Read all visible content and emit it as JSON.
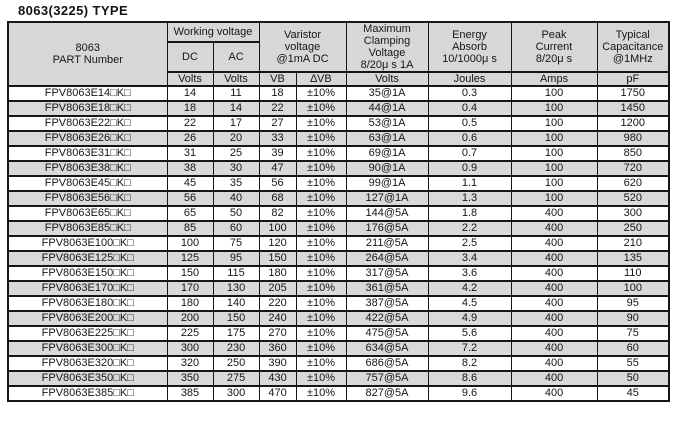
{
  "title": "8063(3225) TYPE",
  "colors": {
    "header_bg": "#d7d7d7",
    "stripe_bg": "#d9d9d9",
    "border": "#161616",
    "text": "#161616"
  },
  "table": {
    "header": {
      "part_number": "8063\nPART Number",
      "working_voltage": "Working voltage",
      "dc": "DC",
      "ac": "AC",
      "varistor_voltage": "Varistor\nvoltage\n@1mA DC",
      "max_clamping_voltage": "Maximum\nClamping\nVoltage\n8/20μ s 1A",
      "energy_absorb": "Energy\nAbsorb\n10/1000μ s",
      "peak_current": "Peak\nCurrent\n8/20μ s",
      "typical_capacitance": "Typical\nCapacitance\n@1MHz",
      "units": [
        "Volts",
        "Volts",
        "VB",
        "∆VB",
        "Volts",
        "Joules",
        "Amps",
        "pF"
      ]
    },
    "columns": [
      "part-number",
      "dc-working-volts",
      "ac-working-volts",
      "varistor-vb",
      "varistor-delta-vb",
      "max-clamping-voltage",
      "energy-joules",
      "peak-current-amps",
      "capacitance-pf"
    ],
    "rows": [
      [
        "FPV8063E14□K□",
        "14",
        "11",
        "18",
        "±10%",
        "35@1A",
        "0.3",
        "100",
        "1750"
      ],
      [
        "FPV8063E18□K□",
        "18",
        "14",
        "22",
        "±10%",
        "44@1A",
        "0.4",
        "100",
        "1450"
      ],
      [
        "FPV8063E22□K□",
        "22",
        "17",
        "27",
        "±10%",
        "53@1A",
        "0.5",
        "100",
        "1200"
      ],
      [
        "FPV8063E26□K□",
        "26",
        "20",
        "33",
        "±10%",
        "63@1A",
        "0.6",
        "100",
        "980"
      ],
      [
        "FPV8063E31□K□",
        "31",
        "25",
        "39",
        "±10%",
        "69@1A",
        "0.7",
        "100",
        "850"
      ],
      [
        "FPV8063E38□K□",
        "38",
        "30",
        "47",
        "±10%",
        "90@1A",
        "0.9",
        "100",
        "720"
      ],
      [
        "FPV8063E45□K□",
        "45",
        "35",
        "56",
        "±10%",
        "99@1A",
        "1.1",
        "100",
        "620"
      ],
      [
        "FPV8063E56□K□",
        "56",
        "40",
        "68",
        "±10%",
        "127@1A",
        "1.3",
        "100",
        "520"
      ],
      [
        "FPV8063E65□K□",
        "65",
        "50",
        "82",
        "±10%",
        "144@5A",
        "1.8",
        "400",
        "300"
      ],
      [
        "FPV8063E85□K□",
        "85",
        "60",
        "100",
        "±10%",
        "176@5A",
        "2.2",
        "400",
        "250"
      ],
      [
        "FPV8063E100□K□",
        "100",
        "75",
        "120",
        "±10%",
        "211@5A",
        "2.5",
        "400",
        "210"
      ],
      [
        "FPV8063E125□K□",
        "125",
        "95",
        "150",
        "±10%",
        "264@5A",
        "3.4",
        "400",
        "135"
      ],
      [
        "FPV8063E150□K□",
        "150",
        "115",
        "180",
        "±10%",
        "317@5A",
        "3.6",
        "400",
        "110"
      ],
      [
        "FPV8063E170□K□",
        "170",
        "130",
        "205",
        "±10%",
        "361@5A",
        "4.2",
        "400",
        "100"
      ],
      [
        "FPV8063E180□K□",
        "180",
        "140",
        "220",
        "±10%",
        "387@5A",
        "4.5",
        "400",
        "95"
      ],
      [
        "FPV8063E200□K□",
        "200",
        "150",
        "240",
        "±10%",
        "422@5A",
        "4.9",
        "400",
        "90"
      ],
      [
        "FPV8063E225□K□",
        "225",
        "175",
        "270",
        "±10%",
        "475@5A",
        "5.6",
        "400",
        "75"
      ],
      [
        "FPV8063E300□K□",
        "300",
        "230",
        "360",
        "±10%",
        "634@5A",
        "7.2",
        "400",
        "60"
      ],
      [
        "FPV8063E320□K□",
        "320",
        "250",
        "390",
        "±10%",
        "686@5A",
        "8.2",
        "400",
        "55"
      ],
      [
        "FPV8063E350□K□",
        "350",
        "275",
        "430",
        "±10%",
        "757@5A",
        "8.6",
        "400",
        "50"
      ],
      [
        "FPV8063E385□K□",
        "385",
        "300",
        "470",
        "±10%",
        "827@5A",
        "9.6",
        "400",
        "45"
      ]
    ]
  }
}
